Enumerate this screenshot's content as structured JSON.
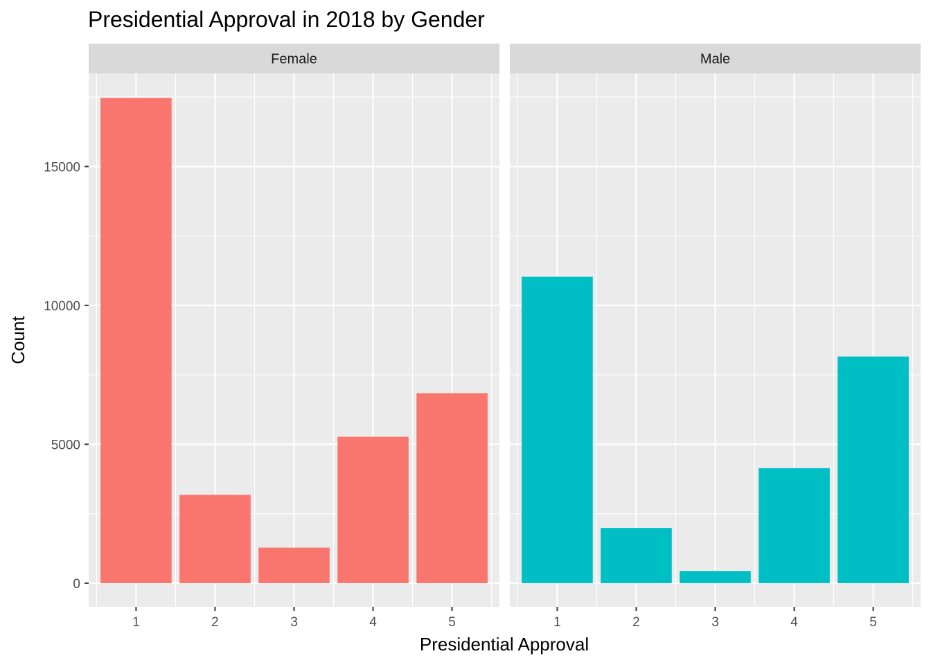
{
  "chart_data": {
    "type": "bar",
    "title": "Presidential Approval in 2018 by Gender",
    "xlabel": "Presidential Approval",
    "ylabel": "Count",
    "categories": [
      "1",
      "2",
      "3",
      "4",
      "5"
    ],
    "y_ticks": [
      0,
      5000,
      10000,
      15000
    ],
    "y_tick_labels": [
      "0",
      "5000",
      "10000",
      "15000"
    ],
    "ylim": [
      -850,
      18350
    ],
    "grid": true,
    "legend": "none",
    "facets": [
      {
        "name": "Female",
        "color": "#F8766D",
        "values": [
          17470,
          3180,
          1280,
          5270,
          6840
        ]
      },
      {
        "name": "Male",
        "color": "#00BFC4",
        "values": [
          11030,
          1990,
          440,
          4140,
          8160
        ]
      }
    ],
    "colors": {
      "panel_background": "#EBEBEB",
      "grid_major": "#FFFFFF",
      "strip_background": "#D9D9D9",
      "tick_color": "#333333"
    }
  }
}
